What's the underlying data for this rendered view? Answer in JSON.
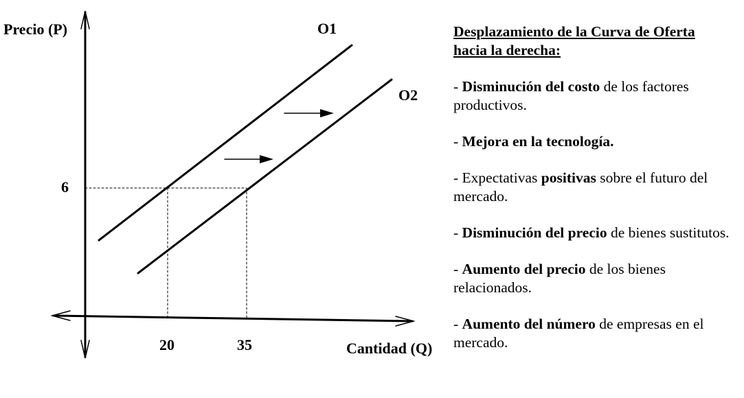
{
  "axes": {
    "y_label": "Precio (P)",
    "x_label": "Cantidad (Q)",
    "price_tick": "6",
    "quantity_ticks": [
      "20",
      "35"
    ]
  },
  "curves": {
    "o1": "O1",
    "o2": "O2"
  },
  "notes": {
    "title_line1": "Desplazamiento de la Curva de Oferta",
    "title_line2": "hacia la derecha:",
    "items": [
      {
        "prefix": "- ",
        "bold": "Disminución del costo",
        "rest": " de los factores productivos."
      },
      {
        "prefix": "- ",
        "bold": "Mejora en la tecnología.",
        "rest": ""
      },
      {
        "prefix": "- Expectativas ",
        "bold": "positivas",
        "rest": " sobre el futuro del mercado."
      },
      {
        "prefix": "- ",
        "bold": "Disminución del precio",
        "rest": " de bienes sustitutos."
      },
      {
        "prefix": "- ",
        "bold": "Aumento del precio",
        "rest": " de los bienes relacionados."
      },
      {
        "prefix": "- ",
        "bold": "Aumento del número",
        "rest": " de empresas en el mercado."
      }
    ]
  }
}
